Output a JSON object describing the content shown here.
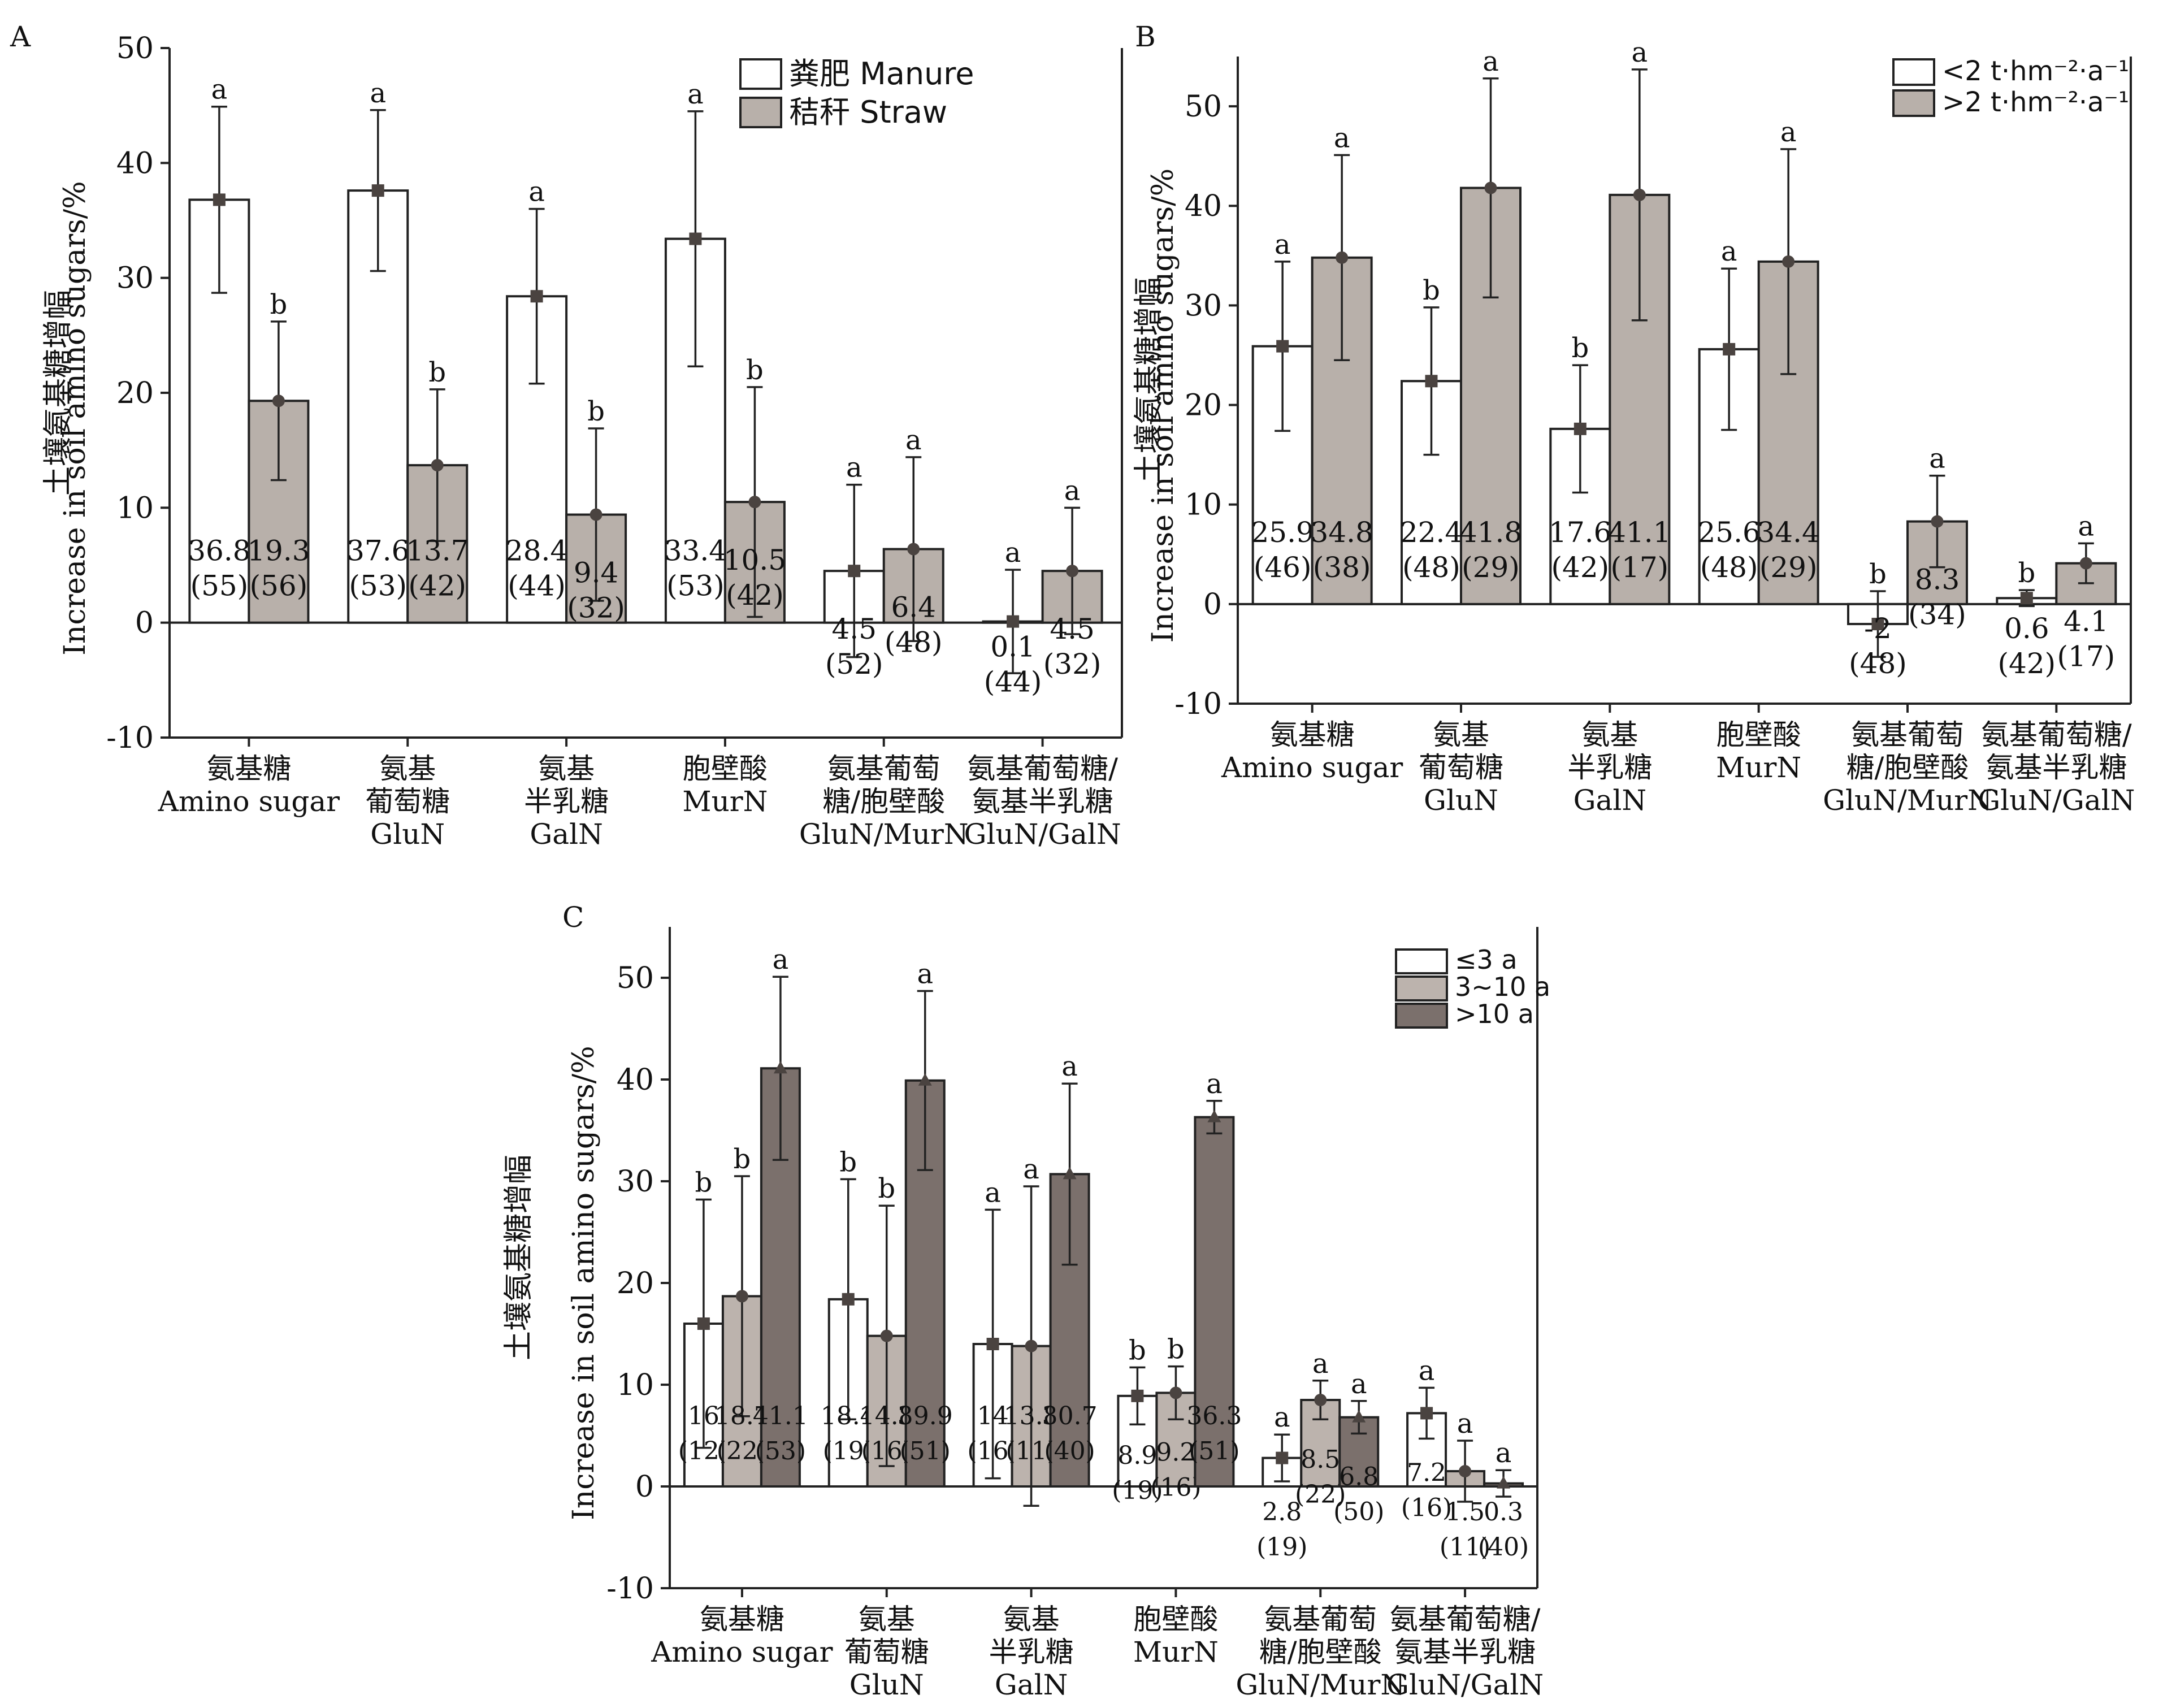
{
  "chart_data": [
    {
      "panel": "A",
      "type": "bar",
      "ylabel_cn": "土壤氨基糖增幅",
      "ylabel_en": "Increase in soil amino sugars/%",
      "ylim": [
        -10,
        50
      ],
      "yticks": [
        -10,
        0,
        10,
        20,
        30,
        40,
        50
      ],
      "legend_position": "top-right",
      "categories": [
        {
          "cn": [
            "氨基糖"
          ],
          "en": [
            "Amino sugar"
          ]
        },
        {
          "cn": [
            "氨基",
            "葡萄糖"
          ],
          "en": [
            "GluN"
          ]
        },
        {
          "cn": [
            "氨基",
            "半乳糖"
          ],
          "en": [
            "GalN"
          ]
        },
        {
          "cn": [
            "胞壁酸"
          ],
          "en": [
            "MurN"
          ]
        },
        {
          "cn": [
            "氨基葡萄",
            "糖/胞壁酸"
          ],
          "en": [
            "GluN/MurN"
          ]
        },
        {
          "cn": [
            "氨基葡萄糖/",
            "氨基半乳糖"
          ],
          "en": [
            "GluN/GalN"
          ]
        }
      ],
      "series": [
        {
          "name": "粪肥  Manure",
          "color": "#ffffff",
          "marker": "square",
          "values": [
            36.8,
            37.6,
            28.4,
            33.4,
            4.5,
            0.1
          ],
          "err": [
            8.1,
            7.0,
            7.6,
            11.1,
            7.5,
            4.5
          ],
          "n": [
            "(55)",
            "(53)",
            "(44)",
            "(53)",
            "(52)",
            "(44)"
          ],
          "labels": [
            "36.8",
            "37.6",
            "28.4",
            "33.4",
            "4.5",
            "0.1"
          ],
          "sig": [
            "a",
            "a",
            "a",
            "a",
            "a",
            "a"
          ]
        },
        {
          "name": "秸秆  Straw",
          "color": "#b8b0aa",
          "marker": "circle",
          "values": [
            19.3,
            13.7,
            9.4,
            10.5,
            6.4,
            4.5
          ],
          "err": [
            6.9,
            6.6,
            7.5,
            10.0,
            8.0,
            5.5
          ],
          "n": [
            "(56)",
            "(42)",
            "(32)",
            "(42)",
            "(48)",
            "(32)"
          ],
          "labels": [
            "19.3",
            "13.7",
            "9.4",
            "10.5",
            "6.4",
            "4.5"
          ],
          "sig": [
            "b",
            "b",
            "b",
            "b",
            "a",
            "a"
          ]
        }
      ]
    },
    {
      "panel": "B",
      "type": "bar",
      "ylabel_cn": "土壤氨基糖增幅",
      "ylabel_en": "Increase in soil amino sugars/%",
      "ylim": [
        -10,
        55
      ],
      "yticks": [
        -10,
        0,
        10,
        20,
        30,
        40,
        50
      ],
      "legend_position": "top-right",
      "categories": [
        {
          "cn": [
            "氨基糖"
          ],
          "en": [
            "Amino sugar"
          ]
        },
        {
          "cn": [
            "氨基",
            "葡萄糖"
          ],
          "en": [
            "GluN"
          ]
        },
        {
          "cn": [
            "氨基",
            "半乳糖"
          ],
          "en": [
            "GalN"
          ]
        },
        {
          "cn": [
            "胞壁酸"
          ],
          "en": [
            "MurN"
          ]
        },
        {
          "cn": [
            "氨基葡萄",
            "糖/胞壁酸"
          ],
          "en": [
            "GluN/MurN"
          ]
        },
        {
          "cn": [
            "氨基葡萄糖/",
            "氨基半乳糖"
          ],
          "en": [
            "GluN/GalN"
          ]
        }
      ],
      "series": [
        {
          "name": "<2 t·hm⁻²·a⁻¹",
          "color": "#ffffff",
          "marker": "square",
          "values": [
            25.9,
            22.4,
            17.6,
            25.6,
            -2.0,
            0.6
          ],
          "err": [
            8.5,
            7.4,
            6.4,
            8.1,
            3.3,
            0.8
          ],
          "n": [
            "(46)",
            "(48)",
            "(42)",
            "(48)",
            "(48)",
            "(42)"
          ],
          "labels": [
            "25.9",
            "22.4",
            "17.6",
            "25.6",
            "-2",
            "0.6"
          ],
          "sig": [
            "a",
            "b",
            "b",
            "a",
            "b",
            "b"
          ]
        },
        {
          "name": ">2 t·hm⁻²·a⁻¹",
          "color": "#b8b0aa",
          "marker": "circle",
          "values": [
            34.8,
            41.8,
            41.1,
            34.4,
            8.3,
            4.1
          ],
          "err": [
            10.3,
            11.0,
            12.6,
            11.3,
            4.6,
            2.0
          ],
          "n": [
            "(38)",
            "(29)",
            "(17)",
            "(29)",
            "(34)",
            "(17)"
          ],
          "labels": [
            "34.8",
            "41.8",
            "41.1",
            "34.4",
            "8.3",
            "4.1"
          ],
          "sig": [
            "a",
            "a",
            "a",
            "a",
            "a",
            "a"
          ]
        }
      ]
    },
    {
      "panel": "C",
      "type": "bar",
      "ylabel_cn": "土壤氨基糖增幅",
      "ylabel_en": "Increase in soil amino sugars/%",
      "ylim": [
        -10,
        55
      ],
      "yticks": [
        -10,
        0,
        10,
        20,
        30,
        40,
        50
      ],
      "legend_position": "top-right",
      "categories": [
        {
          "cn": [
            "氨基糖"
          ],
          "en": [
            "Amino sugar"
          ]
        },
        {
          "cn": [
            "氨基",
            "葡萄糖"
          ],
          "en": [
            "GluN"
          ]
        },
        {
          "cn": [
            "氨基",
            "半乳糖"
          ],
          "en": [
            "GalN"
          ]
        },
        {
          "cn": [
            "胞壁酸"
          ],
          "en": [
            "MurN"
          ]
        },
        {
          "cn": [
            "氨基葡萄",
            "糖/胞壁酸"
          ],
          "en": [
            "GluN/MurN"
          ]
        },
        {
          "cn": [
            "氨基葡萄糖/",
            "氨基半乳糖"
          ],
          "en": [
            "GluN/GalN"
          ]
        }
      ],
      "series": [
        {
          "name": "≤3 a",
          "color": "#ffffff",
          "marker": "square",
          "values": [
            16,
            18.4,
            14,
            8.9,
            2.8,
            7.2
          ],
          "err": [
            12.2,
            11.8,
            13.2,
            2.8,
            2.3,
            2.5
          ],
          "n": [
            "(12)",
            "(19)",
            "(16)",
            "(19)",
            "(19)",
            "(16)"
          ],
          "labels": [
            "16",
            "18.4",
            "14",
            "8.9",
            "2.8",
            "7.2"
          ],
          "sig": [
            "b",
            "b",
            "a",
            "b",
            "a",
            "a"
          ]
        },
        {
          "name": "3~10 a",
          "color": "#bcb3ad",
          "marker": "circle",
          "values": [
            18.7,
            14.8,
            13.8,
            9.2,
            8.5,
            1.5
          ],
          "err": [
            11.8,
            12.8,
            15.7,
            2.6,
            1.9,
            3.0
          ],
          "n": [
            "(22)",
            "(16)",
            "(11)",
            "(16)",
            "(22)",
            "(11)"
          ],
          "labels": [
            "18.7",
            "14.8",
            "13.8",
            "9.2",
            "8.5",
            "1.5"
          ],
          "sig": [
            "b",
            "b",
            "a",
            "b",
            "a",
            "a"
          ]
        },
        {
          "name": ">10 a",
          "color": "#7b706c",
          "marker": "triangle",
          "values": [
            41.1,
            39.9,
            30.7,
            36.3,
            6.8,
            0.3
          ],
          "err": [
            9.0,
            8.8,
            8.9,
            1.6,
            1.6,
            1.3
          ],
          "n": [
            "(53)",
            "(51)",
            "(40)",
            "(51)",
            "(50)",
            "(40)"
          ],
          "labels": [
            "41.1",
            "39.9",
            "30.7",
            "36.3",
            "6.8",
            "0.3"
          ],
          "sig": [
            "a",
            "a",
            "a",
            "a",
            "a",
            "a"
          ]
        }
      ]
    }
  ]
}
